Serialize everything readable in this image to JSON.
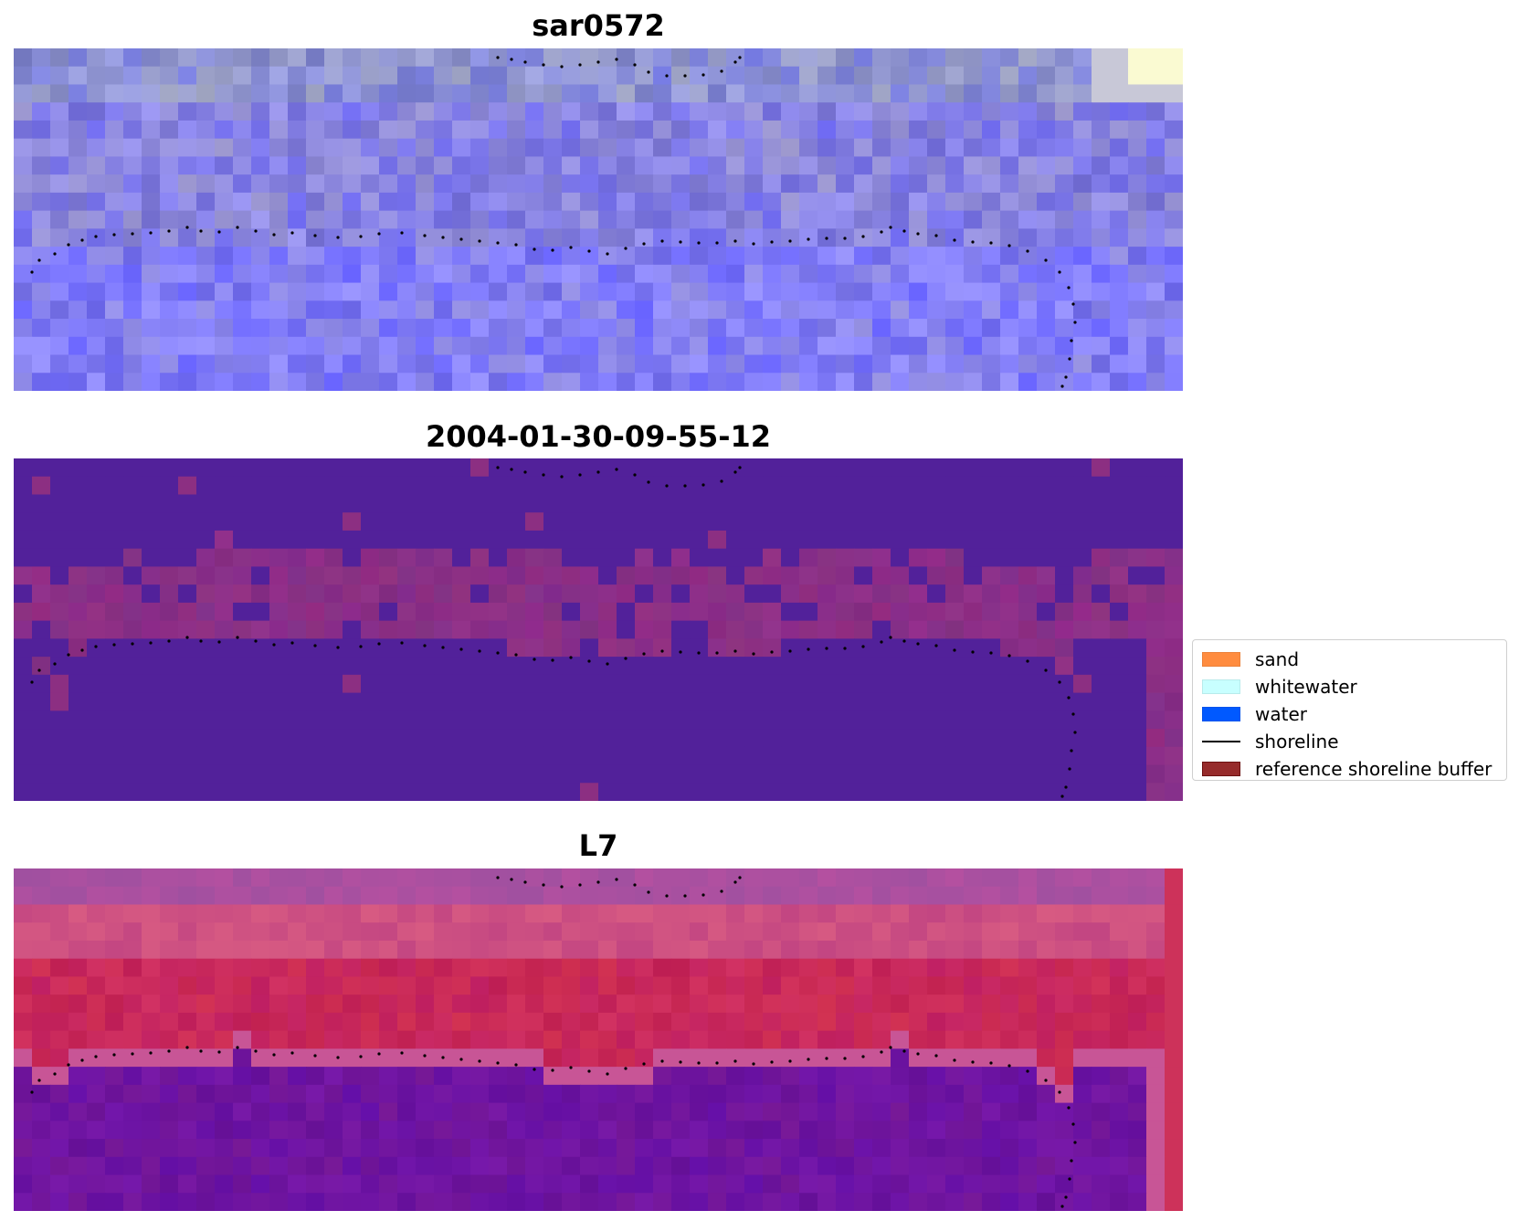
{
  "panels": [
    {
      "title": "sar0572",
      "style": "rgb"
    },
    {
      "title": "2004-01-30-09-55-12",
      "style": "classified"
    },
    {
      "title": "L7",
      "style": "index"
    }
  ],
  "legend": {
    "items": [
      {
        "label": "sand",
        "kind": "patch",
        "color": "#ff8c3f"
      },
      {
        "label": "whitewater",
        "kind": "patch",
        "color": "#c8ffff"
      },
      {
        "label": "water",
        "kind": "patch",
        "color": "#0059ff"
      },
      {
        "label": "shoreline",
        "kind": "line",
        "color": "#000000"
      },
      {
        "label": "reference shoreline buffer",
        "kind": "patch",
        "color": "#962b2b"
      }
    ]
  },
  "colors": {
    "rgb_base": "#8a8ae0",
    "classified_water": "#52219a",
    "classified_buffer": "#8a2f86",
    "index_high": "#c2205a",
    "index_low": "#6a1a9e",
    "shoreline_dots": "#000000"
  }
}
